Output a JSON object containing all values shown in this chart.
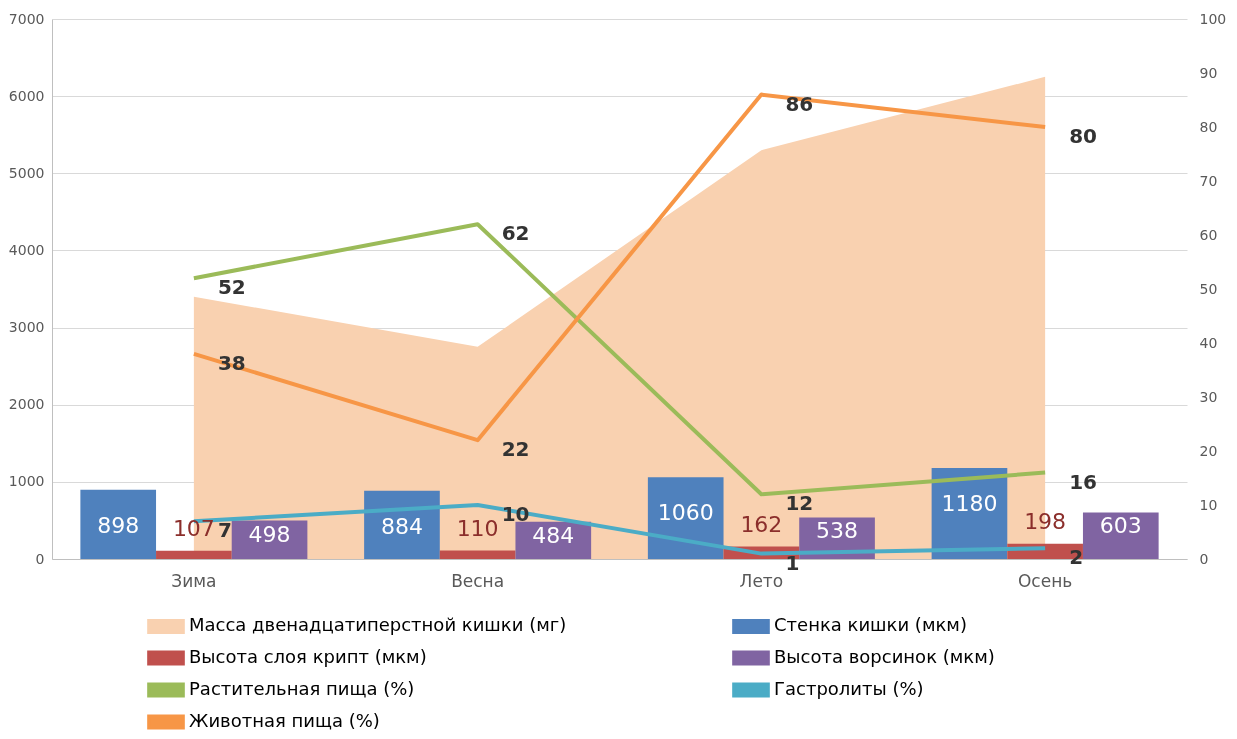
{
  "chart_data": {
    "type": "bar",
    "categories": [
      "Зима",
      "Весна",
      "Лето",
      "Осень"
    ],
    "series": [
      {
        "name": "Масса двенадцатиперстной кишки (мг)",
        "type": "area",
        "color": "#f9d1b0",
        "values": [
          3400,
          2750,
          5300,
          6250
        ]
      },
      {
        "name": "Стенка кишки (мкм)",
        "color": "#4f81bd",
        "values": [
          898,
          884,
          1060,
          1180
        ],
        "value_labels": [
          "898",
          "884",
          "1060",
          "1180"
        ]
      },
      {
        "name": "Высота слоя крипт (мкм)",
        "color": "#c0504d",
        "values": [
          107,
          110,
          162,
          198
        ],
        "value_labels": [
          "107",
          "110",
          "162",
          "198"
        ]
      },
      {
        "name": "Высота ворсинок (мкм)",
        "color": "#8064a2",
        "values": [
          498,
          484,
          538,
          603
        ],
        "value_labels": [
          "498",
          "484",
          "538",
          "603"
        ]
      },
      {
        "name": "Растительная пища (%)",
        "type": "line",
        "axis": "y2",
        "color": "#9bbb59",
        "values": [
          52,
          62,
          12,
          16
        ],
        "value_labels": [
          "52",
          "62",
          "12",
          "16"
        ]
      },
      {
        "name": "Гастролиты (%)",
        "type": "line",
        "axis": "y2",
        "color": "#4bacc6",
        "values": [
          7,
          10,
          1,
          2
        ],
        "value_labels": [
          "7",
          "10",
          "1",
          "2"
        ]
      },
      {
        "name": "Животная пища (%)",
        "type": "line",
        "axis": "y2",
        "color": "#f79646",
        "values": [
          38,
          22,
          86,
          80
        ],
        "value_labels": [
          "38",
          "22",
          "86",
          "80"
        ]
      }
    ],
    "ylim": [
      0,
      7000
    ],
    "yticks": [
      0,
      1000,
      2000,
      3000,
      4000,
      5000,
      6000,
      7000
    ],
    "y2lim": [
      0,
      100
    ],
    "y2ticks": [
      0,
      10,
      20,
      30,
      40,
      50,
      60,
      70,
      80,
      90,
      100
    ],
    "grid": "y",
    "legend": "bottom"
  }
}
